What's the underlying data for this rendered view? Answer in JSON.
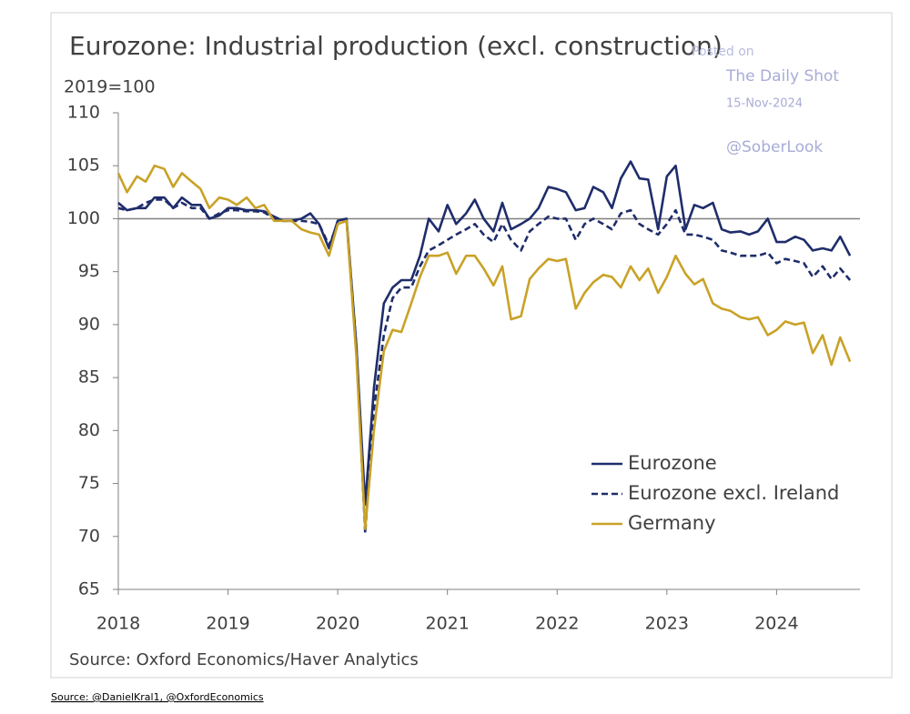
{
  "chart_data": {
    "type": "line",
    "title": "Eurozone: Industrial production (excl. construction)",
    "subtitle": "2019=100",
    "source": "Source: Oxford Economics/Haver Analytics",
    "footer": "Source: @DanielKral1, @OxfordEconomics",
    "watermark": [
      "Posted on",
      "The Daily Shot",
      "15-Nov-2024",
      "@SoberLook"
    ],
    "x": [
      2018,
      2018.08,
      2018.17,
      2018.25,
      2018.33,
      2018.42,
      2018.5,
      2018.58,
      2018.67,
      2018.75,
      2018.83,
      2018.92,
      2019,
      2019.08,
      2019.17,
      2019.25,
      2019.33,
      2019.42,
      2019.5,
      2019.58,
      2019.67,
      2019.75,
      2019.83,
      2019.92,
      2020,
      2020.08,
      2020.17,
      2020.25,
      2020.33,
      2020.42,
      2020.5,
      2020.58,
      2020.67,
      2020.75,
      2020.83,
      2020.92,
      2021,
      2021.08,
      2021.17,
      2021.25,
      2021.33,
      2021.42,
      2021.5,
      2021.58,
      2021.67,
      2021.75,
      2021.83,
      2021.92,
      2022,
      2022.08,
      2022.17,
      2022.25,
      2022.33,
      2022.42,
      2022.5,
      2022.58,
      2022.67,
      2022.75,
      2022.83,
      2022.92,
      2023,
      2023.08,
      2023.17,
      2023.25,
      2023.33,
      2023.42,
      2023.5,
      2023.58,
      2023.67,
      2023.75,
      2023.83,
      2023.92,
      2024,
      2024.08,
      2024.17,
      2024.25,
      2024.33,
      2024.42,
      2024.5,
      2024.58,
      2024.67
    ],
    "series": [
      {
        "name": "Eurozone",
        "color": "#1f2d6b",
        "dash": false,
        "values": [
          101.5,
          100.8,
          101.0,
          101.0,
          102.0,
          102.0,
          101.0,
          102.0,
          101.3,
          101.3,
          100.0,
          100.3,
          101.0,
          101.0,
          100.8,
          100.8,
          100.7,
          100.2,
          99.8,
          99.8,
          100.0,
          100.5,
          99.5,
          97.2,
          99.8,
          100.0,
          88,
          73,
          84,
          92,
          93.5,
          94.2,
          94.2,
          96.5,
          100.0,
          98.8,
          101.3,
          99.5,
          100.5,
          101.8,
          100.0,
          98.8,
          101.5,
          99.0,
          99.5,
          100.0,
          101.0,
          103.0,
          102.8,
          102.5,
          100.8,
          101.0,
          103.0,
          102.5,
          101.0,
          103.8,
          105.4,
          103.8,
          103.7,
          99.0,
          104.0,
          105.0,
          99.0,
          101.3,
          101.0,
          101.5,
          99.0,
          98.7,
          98.8,
          98.5,
          98.8,
          100.0,
          97.8,
          97.8,
          98.3,
          98.0,
          97.0,
          97.2,
          97.0,
          98.3,
          96.5
        ]
      },
      {
        "name": "Eurozone excl. Ireland",
        "color": "#1f2d6b",
        "dash": true,
        "values": [
          101.0,
          100.8,
          101.0,
          101.5,
          101.8,
          101.8,
          101.0,
          101.5,
          101.0,
          101.0,
          100.0,
          100.5,
          100.8,
          100.8,
          100.7,
          100.7,
          100.6,
          100.0,
          99.8,
          99.8,
          99.8,
          99.7,
          99.5,
          97.5,
          99.5,
          99.8,
          88,
          70.3,
          82,
          89,
          92.5,
          93.5,
          93.5,
          95.5,
          97.0,
          97.5,
          98.0,
          98.5,
          99.0,
          99.5,
          98.5,
          97.8,
          99.5,
          98.0,
          97.0,
          98.8,
          99.5,
          100.2,
          100.0,
          100.0,
          98.0,
          99.5,
          100.0,
          99.5,
          99.0,
          100.5,
          100.8,
          99.5,
          99.0,
          98.5,
          99.5,
          100.8,
          98.5,
          98.5,
          98.3,
          98.0,
          97.0,
          96.8,
          96.5,
          96.5,
          96.5,
          96.8,
          95.8,
          96.2,
          96.0,
          95.8,
          94.5,
          95.5,
          94.3,
          95.3,
          94.2
        ]
      },
      {
        "name": "Germany",
        "color": "#c9a227",
        "dash": false,
        "values": [
          104.3,
          102.5,
          104.0,
          103.5,
          105.0,
          104.7,
          103.0,
          104.3,
          103.5,
          102.8,
          101.0,
          102.0,
          101.8,
          101.3,
          102.0,
          101.0,
          101.3,
          99.8,
          99.8,
          99.8,
          99.0,
          98.7,
          98.5,
          96.5,
          99.5,
          99.8,
          87,
          70.7,
          80,
          87.5,
          89.5,
          89.3,
          92,
          94.5,
          96.5,
          96.5,
          96.8,
          94.8,
          96.5,
          96.5,
          95.3,
          93.7,
          95.5,
          90.5,
          90.8,
          94.3,
          95.3,
          96.2,
          96.0,
          96.2,
          91.5,
          93.0,
          94.0,
          94.7,
          94.5,
          93.5,
          95.5,
          94.2,
          95.3,
          93.0,
          94.5,
          96.5,
          94.8,
          93.8,
          94.3,
          92.0,
          91.5,
          91.3,
          90.7,
          90.5,
          90.7,
          89.0,
          89.5,
          90.3,
          90.0,
          90.2,
          87.3,
          89.0,
          86.2,
          88.8,
          86.5
        ]
      }
    ],
    "xlim": [
      2018,
      2024.76
    ],
    "xticks": [
      2018,
      2019,
      2020,
      2021,
      2022,
      2023,
      2024
    ],
    "ylim": [
      65,
      110
    ],
    "yticks": [
      65,
      70,
      75,
      80,
      85,
      90,
      95,
      100,
      105,
      110
    ],
    "reference_line": 100,
    "grid": false,
    "legend": "lower right"
  }
}
